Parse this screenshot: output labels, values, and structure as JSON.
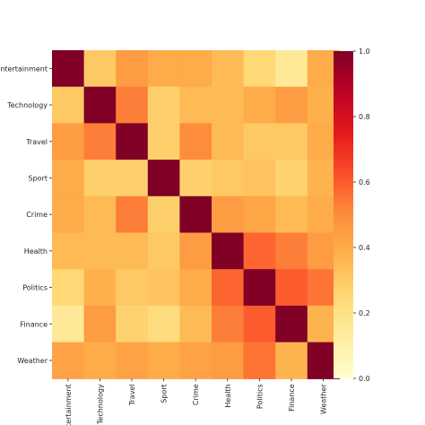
{
  "chart_data": {
    "type": "heatmap",
    "title": "",
    "xlabel": "",
    "ylabel": "",
    "categories": [
      "Entertainment",
      "Technology",
      "Travel",
      "Sport",
      "Crime",
      "Health",
      "Politics",
      "Finance",
      "Weather"
    ],
    "matrix": [
      [
        1.0,
        0.3,
        0.45,
        0.4,
        0.4,
        0.35,
        0.25,
        0.15,
        0.4
      ],
      [
        0.3,
        1.0,
        0.53,
        0.28,
        0.35,
        0.35,
        0.4,
        0.45,
        0.38
      ],
      [
        0.45,
        0.53,
        1.0,
        0.28,
        0.5,
        0.35,
        0.3,
        0.3,
        0.4
      ],
      [
        0.4,
        0.28,
        0.28,
        1.0,
        0.28,
        0.3,
        0.32,
        0.27,
        0.37
      ],
      [
        0.4,
        0.35,
        0.53,
        0.28,
        1.0,
        0.45,
        0.42,
        0.35,
        0.4
      ],
      [
        0.35,
        0.35,
        0.35,
        0.3,
        0.45,
        1.0,
        0.58,
        0.53,
        0.45
      ],
      [
        0.25,
        0.38,
        0.3,
        0.32,
        0.4,
        0.58,
        1.0,
        0.6,
        0.55
      ],
      [
        0.15,
        0.45,
        0.27,
        0.23,
        0.35,
        0.53,
        0.6,
        1.0,
        0.37
      ],
      [
        0.43,
        0.4,
        0.43,
        0.4,
        0.43,
        0.45,
        0.55,
        0.37,
        1.0
      ]
    ],
    "colorbar": {
      "range": [
        0.0,
        1.0
      ],
      "ticks": [
        "0.0",
        "0.2",
        "0.4",
        "0.6",
        "0.8",
        "1.0"
      ],
      "colormap": "YlOrRd",
      "stops": [
        "#ffffcc",
        "#ffeda0",
        "#fed976",
        "#feb24c",
        "#fd8d3c",
        "#fc4e2a",
        "#e31a1c",
        "#bd0026",
        "#800026"
      ]
    },
    "grid": false,
    "legend": "right"
  }
}
